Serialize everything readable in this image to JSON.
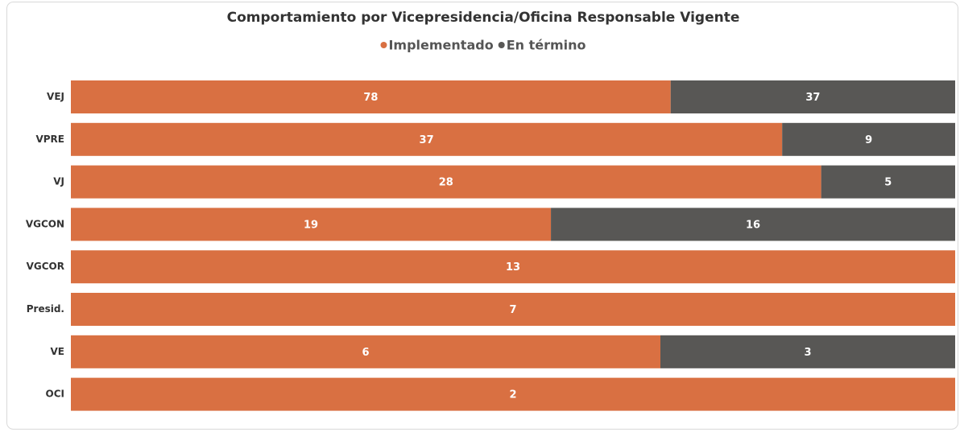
{
  "chart_data": {
    "type": "bar",
    "orientation": "horizontal",
    "stacked": "percent",
    "title": "Comportamiento por Vicepresidencia/Oficina Responsable Vigente",
    "categories": [
      "VEJ",
      "VPRE",
      "VJ",
      "VGCON",
      "VGCOR",
      "Presid.",
      "VE",
      "OCI"
    ],
    "series": [
      {
        "name": "Implementado",
        "color": "#d97042",
        "values": [
          78,
          37,
          28,
          19,
          13,
          7,
          6,
          2
        ]
      },
      {
        "name": "En término",
        "color": "#585755",
        "values": [
          37,
          9,
          5,
          16,
          null,
          null,
          3,
          null
        ]
      }
    ],
    "legend": "top",
    "grid": false
  }
}
